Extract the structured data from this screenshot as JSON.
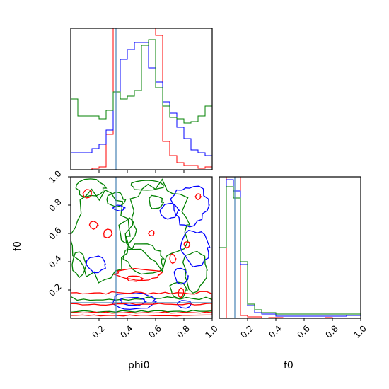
{
  "chart_data": {
    "type": "corner",
    "parameters": [
      "phi0",
      "f0"
    ],
    "truth": {
      "phi0": 0.32,
      "f0": 0.11
    },
    "truth_color": "#4682b4",
    "series": [
      {
        "color": "#ff0000"
      },
      {
        "color": "#0000ff"
      },
      {
        "color": "#008000"
      }
    ],
    "phi0_hist": {
      "type": "step-histogram",
      "bin_edges": [
        0.0,
        0.05,
        0.1,
        0.15,
        0.2,
        0.25,
        0.3,
        0.35,
        0.4,
        0.45,
        0.5,
        0.55,
        0.6,
        0.65,
        0.7,
        0.75,
        0.8,
        0.85,
        0.9,
        0.95,
        1.0
      ],
      "counts": [
        [
          0.0,
          0.0,
          0.0,
          0.01,
          0.02,
          0.25,
          1.2,
          1.4,
          1.3,
          1.35,
          1.4,
          1.3,
          0.95,
          0.2,
          0.1,
          0.05,
          0.03,
          0.03,
          0.01,
          0.02
        ],
        [
          0.12,
          0.12,
          0.12,
          0.15,
          0.18,
          0.28,
          0.55,
          0.78,
          0.85,
          0.9,
          0.9,
          0.72,
          0.62,
          0.48,
          0.4,
          0.3,
          0.22,
          0.14,
          0.12,
          0.1
        ],
        [
          0.5,
          0.38,
          0.38,
          0.38,
          0.36,
          0.42,
          0.55,
          0.5,
          0.52,
          0.56,
          0.88,
          0.92,
          0.58,
          0.45,
          0.37,
          0.36,
          0.33,
          0.34,
          0.38,
          0.45
        ]
      ],
      "xlim": [
        0,
        1
      ]
    },
    "f0_hist": {
      "type": "step-histogram",
      "bin_edges": [
        0.0,
        0.05,
        0.1,
        0.15,
        0.2,
        0.25,
        0.3,
        0.35,
        0.4,
        0.45,
        0.5,
        0.55,
        0.6,
        0.65,
        0.7,
        0.75,
        0.8,
        0.85,
        0.9,
        0.95,
        1.0
      ],
      "counts": [
        [
          0.0,
          1.2,
          1.2,
          0.02,
          0.01,
          0.01,
          0.0,
          0.005,
          0.005,
          0.0,
          0.0,
          0.0,
          0.0,
          0.0,
          0.0,
          0.005,
          0.0,
          0.0,
          0.0,
          0.0
        ],
        [
          0.5,
          0.98,
          0.9,
          0.38,
          0.09,
          0.04,
          0.03,
          0.03,
          0.015,
          0.015,
          0.015,
          0.015,
          0.015,
          0.015,
          0.015,
          0.015,
          0.015,
          0.015,
          0.02,
          0.02
        ],
        [
          0.5,
          0.93,
          0.85,
          0.4,
          0.1,
          0.06,
          0.04,
          0.04,
          0.03,
          0.03,
          0.03,
          0.03,
          0.03,
          0.03,
          0.03,
          0.03,
          0.03,
          0.03,
          0.03,
          0.03
        ]
      ],
      "xlim": [
        0,
        1
      ]
    },
    "contours": {
      "xlim": [
        0,
        1
      ],
      "ylim": [
        0,
        1
      ],
      "xlabel": "phi0",
      "ylabel": "f0",
      "xticks": [
        "0.2",
        "0.4",
        "0.6",
        "0.8",
        "1.0"
      ],
      "yticks": [
        "0.2",
        "0.4",
        "0.6",
        "0.8",
        "1.0"
      ]
    },
    "f0_axis": {
      "xlabel": "f0",
      "xticks": [
        "0.2",
        "0.4",
        "0.6",
        "0.8",
        "1.0"
      ]
    }
  }
}
